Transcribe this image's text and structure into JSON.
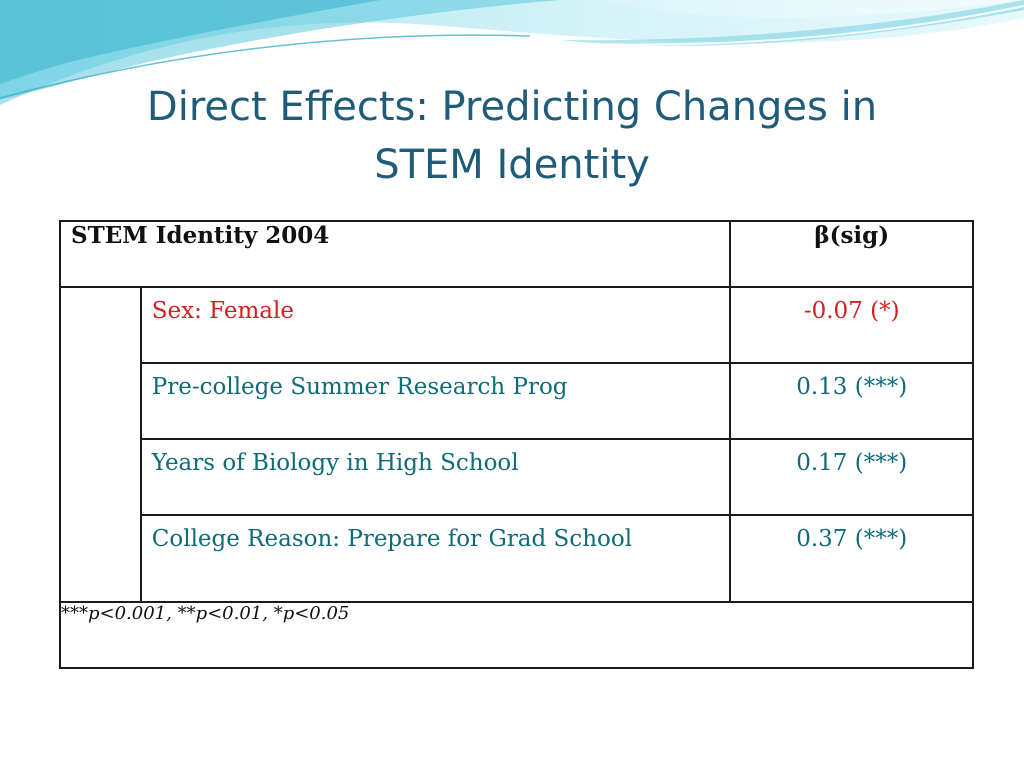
{
  "slide": {
    "title_line1": "Direct Effects: Predicting Changes in",
    "title_line2": "STEM Identity"
  },
  "table": {
    "header_label": "STEM Identity 2004",
    "header_beta": "β(sig)",
    "rows": [
      {
        "predictor": "Sex: Female",
        "value": "-0.07 (*)",
        "color": "#d21f1f"
      },
      {
        "predictor": "Pre-college Summer Research Prog",
        "value": "0.13 (***)",
        "color": "#0f6b78"
      },
      {
        "predictor": "Years of Biology in High School",
        "value": "0.17 (***)",
        "color": "#0f6b78"
      },
      {
        "predictor": "College Reason: Prepare for Grad School",
        "value": "0.37 (***)",
        "color": "#0f6b78"
      }
    ],
    "footnote": "***p<0.001, **p<0.01, *p<0.05"
  },
  "colors": {
    "title": "#1f5c7a",
    "accent_teal": "#0f6b78",
    "accent_red": "#d21f1f",
    "wave_light": "#bfe9f2",
    "wave_dark": "#3fb6cf"
  }
}
